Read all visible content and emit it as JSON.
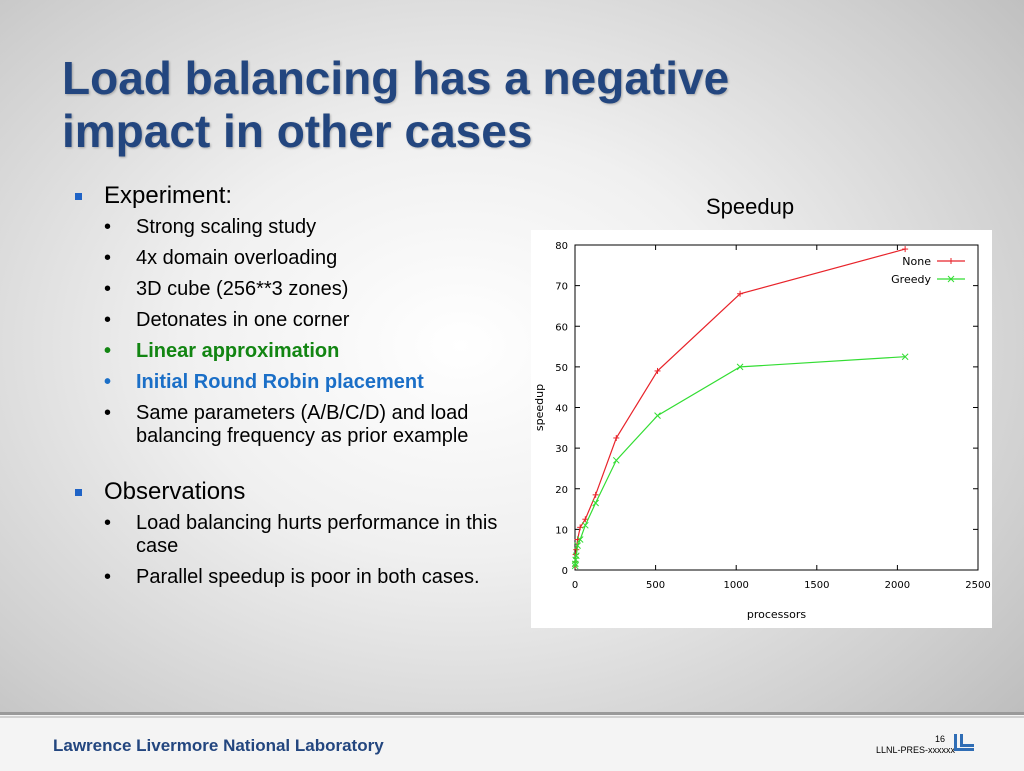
{
  "slide": {
    "title_line1": "Load balancing has a negative",
    "title_line2": "impact in other cases",
    "chart_heading": "Speedup"
  },
  "bullets": {
    "experiment": {
      "label": "Experiment:",
      "items": [
        "Strong scaling study",
        "4x domain overloading",
        "3D cube (256**3 zones)",
        "Detonates in one corner",
        "Linear approximation",
        "Initial Round Robin placement",
        "Same parameters (A/B/C/D) and load balancing frequency as prior example"
      ]
    },
    "observations": {
      "label": "Observations",
      "items": [
        "Load balancing hurts performance in this case",
        "Parallel speedup is poor in both cases."
      ]
    }
  },
  "footer": {
    "lab": "Lawrence Livermore National Laboratory",
    "page": "16",
    "pres": "LLNL-PRES-xxxxxx"
  },
  "colors": {
    "title": "#23467f",
    "none_series": "#e8232a",
    "greedy_series": "#33dd33",
    "green_text": "#128512",
    "blue_text": "#1b6fc7"
  },
  "chart_data": {
    "type": "line",
    "title": "",
    "xlabel": "processors",
    "ylabel": "speedup",
    "xlim": [
      0,
      2500
    ],
    "ylim": [
      0,
      80
    ],
    "xticks": [
      0,
      500,
      1000,
      1500,
      2000,
      2500
    ],
    "yticks": [
      0,
      10,
      20,
      30,
      40,
      50,
      60,
      70,
      80
    ],
    "grid": false,
    "legend": "top-right",
    "series": [
      {
        "name": "None",
        "color": "#e8232a",
        "marker": "+",
        "points": [
          [
            1,
            1
          ],
          [
            2,
            2
          ],
          [
            4,
            3.8
          ],
          [
            8,
            5
          ],
          [
            16,
            7.5
          ],
          [
            32,
            10.5
          ],
          [
            64,
            12.5
          ],
          [
            128,
            18.5
          ],
          [
            256,
            32.5
          ],
          [
            512,
            49
          ],
          [
            1024,
            68
          ],
          [
            2048,
            79
          ]
        ]
      },
      {
        "name": "Greedy",
        "color": "#33dd33",
        "marker": "x",
        "points": [
          [
            1,
            1
          ],
          [
            2,
            1.5
          ],
          [
            4,
            2.5
          ],
          [
            8,
            3.5
          ],
          [
            16,
            6
          ],
          [
            32,
            7.5
          ],
          [
            64,
            11
          ],
          [
            128,
            16.5
          ],
          [
            256,
            27
          ],
          [
            512,
            38
          ],
          [
            1024,
            50
          ],
          [
            2048,
            52.5
          ]
        ]
      }
    ]
  }
}
